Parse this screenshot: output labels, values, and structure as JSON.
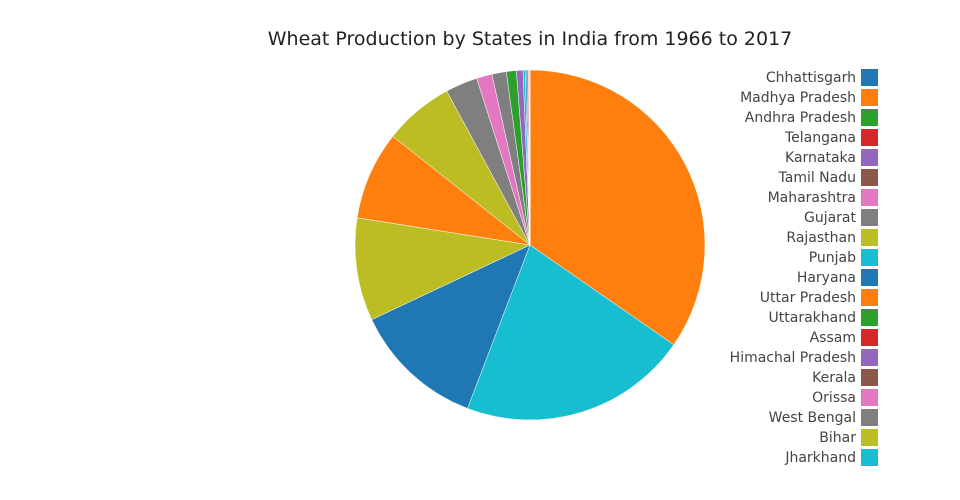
{
  "chart_data": {
    "type": "pie",
    "title": "Wheat Production by States in India from 1966 to 2017",
    "legend_position": "right",
    "sort": "descending",
    "direction": "clockwise",
    "start": "top",
    "slices": [
      {
        "label": "Chhattisgarh",
        "value": 0.13,
        "color": "#1f77b4"
      },
      {
        "label": "Madhya Pradesh",
        "value": 8.0,
        "color": "#ff7f0e"
      },
      {
        "label": "Andhra Pradesh",
        "value": 0.01,
        "color": "#2ca02c"
      },
      {
        "label": "Telangana",
        "value": 0.01,
        "color": "#d62728"
      },
      {
        "label": "Karnataka",
        "value": 0.12,
        "color": "#9467bd"
      },
      {
        "label": "Tamil Nadu",
        "value": 0.0,
        "color": "#8c564b"
      },
      {
        "label": "Maharashtra",
        "value": 1.4,
        "color": "#e377c2"
      },
      {
        "label": "Gujarat",
        "value": 2.9,
        "color": "#7f7f7f"
      },
      {
        "label": "Rajasthan",
        "value": 9.3,
        "color": "#bcbd22"
      },
      {
        "label": "Punjab",
        "value": 20.7,
        "color": "#17becf"
      },
      {
        "label": "Haryana",
        "value": 11.9,
        "color": "#1f77b4"
      },
      {
        "label": "Uttar Pradesh",
        "value": 33.9,
        "color": "#ff7f0e"
      },
      {
        "label": "Uttarakhand",
        "value": 0.9,
        "color": "#2ca02c"
      },
      {
        "label": "Assam",
        "value": 0.08,
        "color": "#d62728"
      },
      {
        "label": "Himachal Pradesh",
        "value": 0.6,
        "color": "#9467bd"
      },
      {
        "label": "Kerala",
        "value": 0.0,
        "color": "#8c564b"
      },
      {
        "label": "Orissa",
        "value": 0.07,
        "color": "#e377c2"
      },
      {
        "label": "West Bengal",
        "value": 1.3,
        "color": "#7f7f7f"
      },
      {
        "label": "Bihar",
        "value": 6.3,
        "color": "#bcbd22"
      },
      {
        "label": "Jharkhand",
        "value": 0.2,
        "color": "#17becf"
      }
    ]
  }
}
